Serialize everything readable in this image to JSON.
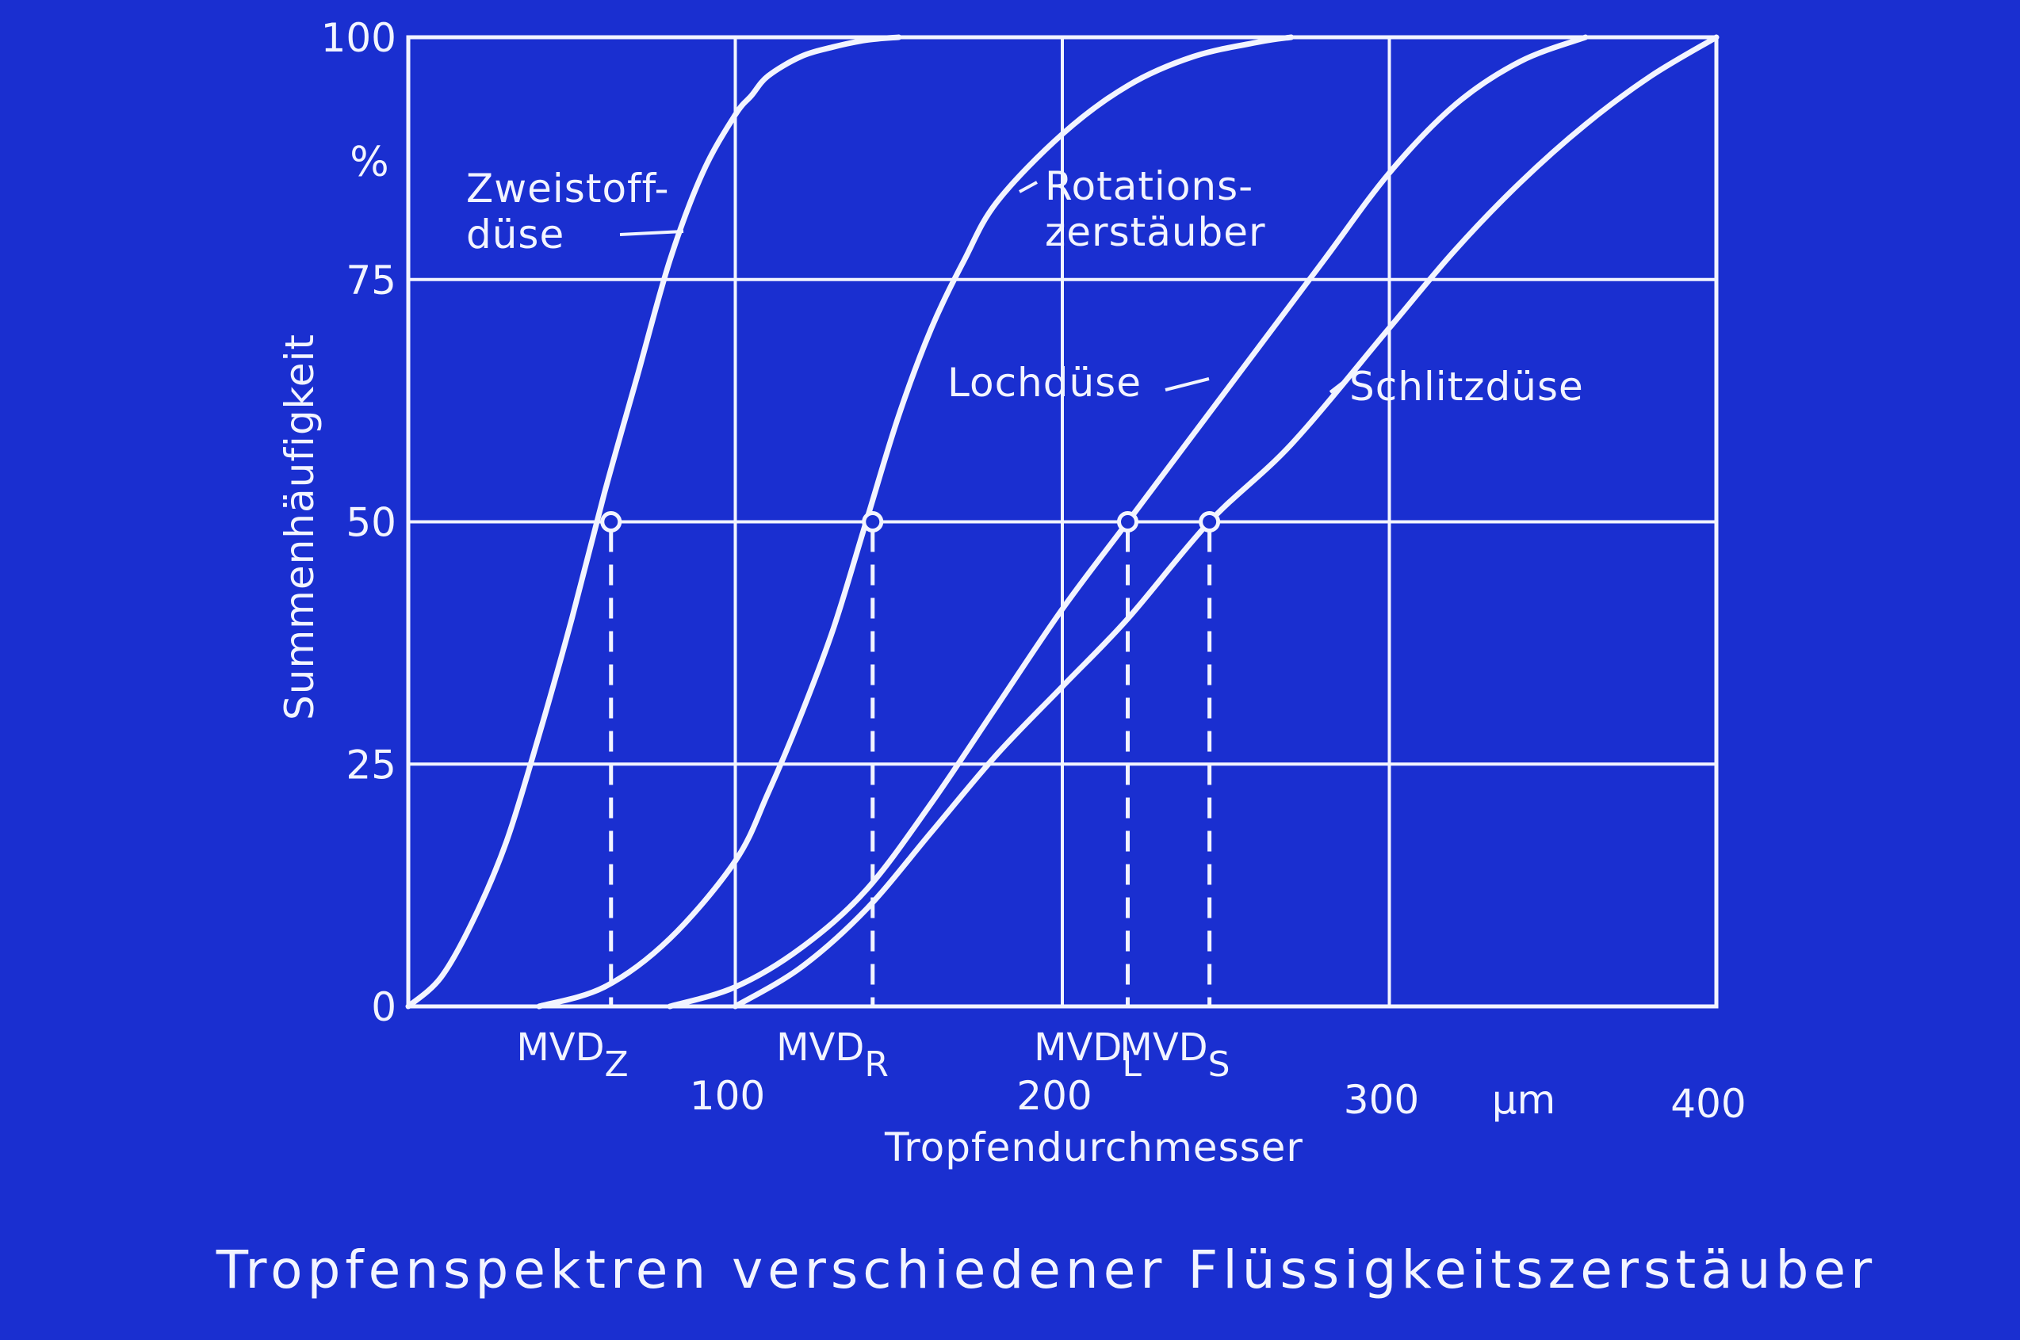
{
  "colors": {
    "background": "#1a2fd0",
    "ink": "#f2f4ff"
  },
  "chart_data": {
    "type": "line",
    "title": "Tropfenspektren verschiedener Flüssigkeitszerstäuber",
    "xlabel": "Tropfendurchmesser",
    "xunit": "µm",
    "ylabel": "Summenhäufigkeit",
    "yunit": "%",
    "xlim": [
      0,
      400
    ],
    "ylim": [
      0,
      100
    ],
    "xticks": [
      100,
      200,
      300,
      400
    ],
    "xtick_labels": [
      "100",
      "200",
      "300",
      "400"
    ],
    "yticks": [
      0,
      25,
      50,
      75,
      100
    ],
    "ytick_labels": [
      "0",
      "25",
      "50",
      "75",
      "100"
    ],
    "grid": true,
    "series": [
      {
        "name": "Zweistoffdüse",
        "label_lines": [
          "Zweistoff-",
          "düse"
        ],
        "x": [
          0,
          10,
          20,
          30,
          40,
          50,
          60,
          70,
          80,
          90,
          100,
          105,
          110,
          120,
          130,
          140,
          150
        ],
        "y": [
          0,
          3,
          9,
          17,
          28,
          40,
          53,
          65,
          77,
          86,
          92,
          94,
          96,
          98,
          99,
          99.7,
          100
        ]
      },
      {
        "name": "Rotationszerstäuber",
        "label_lines": [
          "Rotations-",
          "zerstäuber"
        ],
        "x": [
          40,
          60,
          80,
          100,
          110,
          120,
          130,
          140,
          150,
          160,
          170,
          180,
          200,
          220,
          240,
          260,
          270
        ],
        "y": [
          0,
          2,
          7,
          15,
          22,
          30,
          39,
          50,
          61,
          70,
          77,
          83,
          90,
          95,
          98,
          99.5,
          100
        ]
      },
      {
        "name": "Lochdüse",
        "label_lines": [
          "Lochdüse"
        ],
        "x": [
          80,
          100,
          120,
          140,
          160,
          180,
          200,
          220,
          240,
          260,
          280,
          300,
          320,
          340,
          360
        ],
        "y": [
          0,
          2,
          6,
          12,
          21,
          31,
          41,
          50,
          59,
          68,
          77,
          86,
          93,
          97.5,
          100
        ]
      },
      {
        "name": "Schlitzdüse",
        "label_lines": [
          "Schlitzdüse"
        ],
        "x": [
          100,
          120,
          140,
          160,
          180,
          200,
          220,
          245,
          270,
          300,
          320,
          340,
          360,
          380,
          400
        ],
        "y": [
          0,
          4,
          10,
          18,
          26,
          33,
          40,
          50,
          58,
          70,
          78,
          85,
          91,
          96,
          100
        ]
      }
    ],
    "markers": [
      {
        "label": "MVD",
        "sub": "Z",
        "x": 62,
        "y": 50
      },
      {
        "label": "MVD",
        "sub": "R",
        "x": 142,
        "y": 50
      },
      {
        "label": "MVD",
        "sub": "L",
        "x": 220,
        "y": 50
      },
      {
        "label": "MVD",
        "sub": "S",
        "x": 245,
        "y": 50
      }
    ]
  }
}
